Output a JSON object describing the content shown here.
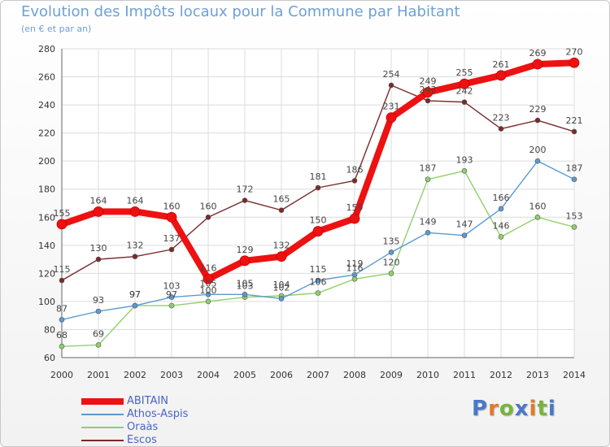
{
  "header": {
    "title": "Evolution des Impôts locaux pour la Commune par Habitant",
    "subtitle": "(en € et par an)"
  },
  "logo": {
    "text": "Proxiti",
    "letter_colors": [
      "#4a78c8",
      "#e07a2a",
      "#78b43c",
      "#4a78c8",
      "#e07a2a",
      "#78b43c",
      "#4a78c8"
    ]
  },
  "chart_data": {
    "type": "line",
    "title": "Evolution des Impôts locaux pour la Commune par Habitant",
    "subtitle": "(en € et par an)",
    "x": [
      2000,
      2001,
      2002,
      2003,
      2004,
      2005,
      2006,
      2007,
      2008,
      2009,
      2010,
      2011,
      2012,
      2013,
      2014
    ],
    "ylim": [
      60,
      280
    ],
    "yticks": [
      60,
      80,
      100,
      120,
      140,
      160,
      180,
      200,
      220,
      240,
      260,
      280
    ],
    "grid": true,
    "legend_position": "bottom-left",
    "series": [
      {
        "name": "Escos",
        "color": "#7a2a2a",
        "values": [
          115,
          130,
          132,
          137,
          160,
          172,
          165,
          181,
          186,
          254,
          243,
          242,
          223,
          229,
          221
        ],
        "labels": [
          "115",
          "130",
          "132",
          "137",
          "160",
          "172",
          "165",
          "181",
          "186",
          "254",
          "243",
          "242",
          "223",
          "229",
          "221"
        ]
      },
      {
        "name": "Oraàs",
        "color": "#8fd06a",
        "values": [
          68,
          69,
          97,
          97,
          100,
          103,
          104,
          106,
          116,
          120,
          187,
          193,
          146,
          160,
          153
        ],
        "labels": [
          "68",
          "69",
          "97",
          "97",
          "100",
          "103",
          "104",
          "106",
          "116",
          "120",
          "187",
          "193",
          "146",
          "160",
          "153"
        ]
      },
      {
        "name": "Athos-Aspis",
        "color": "#5a9ad2",
        "values": [
          87,
          93,
          97,
          103,
          105,
          105,
          102,
          115,
          119,
          135,
          149,
          147,
          166,
          200,
          187
        ],
        "labels": [
          "87",
          "93",
          "97",
          "103",
          "105",
          "105",
          "102",
          "115",
          "119",
          "135",
          "149",
          "147",
          "166",
          "200",
          "187"
        ]
      },
      {
        "name": "ABITAIN",
        "color": "#ee1111",
        "values": [
          155,
          164,
          164,
          160,
          116,
          129,
          132,
          150,
          159,
          231,
          249,
          255,
          261,
          269,
          270
        ],
        "labels": [
          "155",
          "164",
          "164",
          "160",
          "116",
          "129",
          "132",
          "150",
          "159",
          "231",
          "249",
          "255",
          "261",
          "269",
          "270"
        ]
      }
    ]
  },
  "legend": {
    "items": [
      {
        "name": "ABITAIN",
        "color": "#ee1111"
      },
      {
        "name": "Athos-Aspis",
        "color": "#5a9ad2"
      },
      {
        "name": "Oraàs",
        "color": "#8fd06a"
      },
      {
        "name": "Escos",
        "color": "#7a2a2a"
      }
    ]
  }
}
